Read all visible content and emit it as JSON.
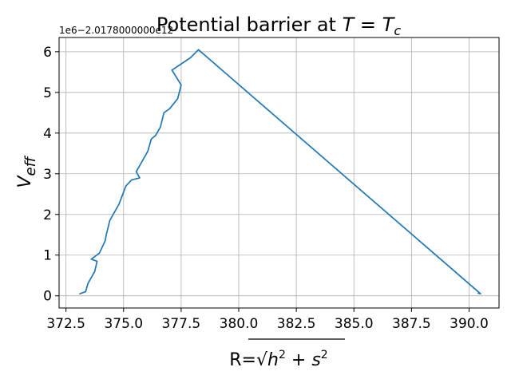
{
  "chart_data": {
    "type": "line",
    "title": "Potential barrier at T = T_c",
    "title_parts": {
      "prefix": "Potential barrier at ",
      "var1": "T",
      "eq": " = ",
      "var2": "T",
      "sub": "c"
    },
    "xlabel": "R=√(h² + s²)",
    "xlabel_parts": {
      "prefix": "R=",
      "h": "h",
      "two1": "2",
      "plus": " + ",
      "s": "s",
      "two2": "2"
    },
    "ylabel": "V_eff",
    "ylabel_parts": {
      "main": "V",
      "sub": "eff"
    },
    "y_offset_text": "1e6−2.0178000000e12",
    "xlim": [
      372.2,
      391.3
    ],
    "ylim": [
      -0.3,
      6.35
    ],
    "x_ticks": [
      372.5,
      375.0,
      377.5,
      380.0,
      382.5,
      385.0,
      387.5,
      390.0
    ],
    "x_tick_labels": [
      "372.5",
      "375.0",
      "377.5",
      "380.0",
      "382.5",
      "385.0",
      "387.5",
      "390.0"
    ],
    "y_ticks": [
      0,
      1,
      2,
      3,
      4,
      5,
      6
    ],
    "y_tick_labels": [
      "0",
      "1",
      "2",
      "3",
      "4",
      "5",
      "6"
    ],
    "grid": true,
    "colors": {
      "line": "#1f77b4",
      "grid": "#b0b0b0"
    },
    "series": [
      {
        "x": [
          373.1,
          373.35,
          373.45,
          373.75,
          373.85,
          373.6,
          373.95,
          374.2,
          374.25,
          374.4,
          374.6,
          374.8,
          375.1,
          375.35,
          375.7,
          375.55,
          375.85,
          376.05,
          376.2,
          376.4,
          376.6,
          376.75,
          377.0,
          377.35,
          377.5,
          377.1,
          377.9,
          378.25,
          390.5,
          390.4,
          390.45
        ],
        "y": [
          0.05,
          0.1,
          0.3,
          0.6,
          0.85,
          0.9,
          1.05,
          1.35,
          1.5,
          1.85,
          2.05,
          2.25,
          2.7,
          2.85,
          2.9,
          3.05,
          3.35,
          3.55,
          3.85,
          3.95,
          4.15,
          4.5,
          4.6,
          4.85,
          5.18,
          5.55,
          5.85,
          6.05,
          0.05,
          0.06,
          0.07
        ]
      }
    ]
  }
}
